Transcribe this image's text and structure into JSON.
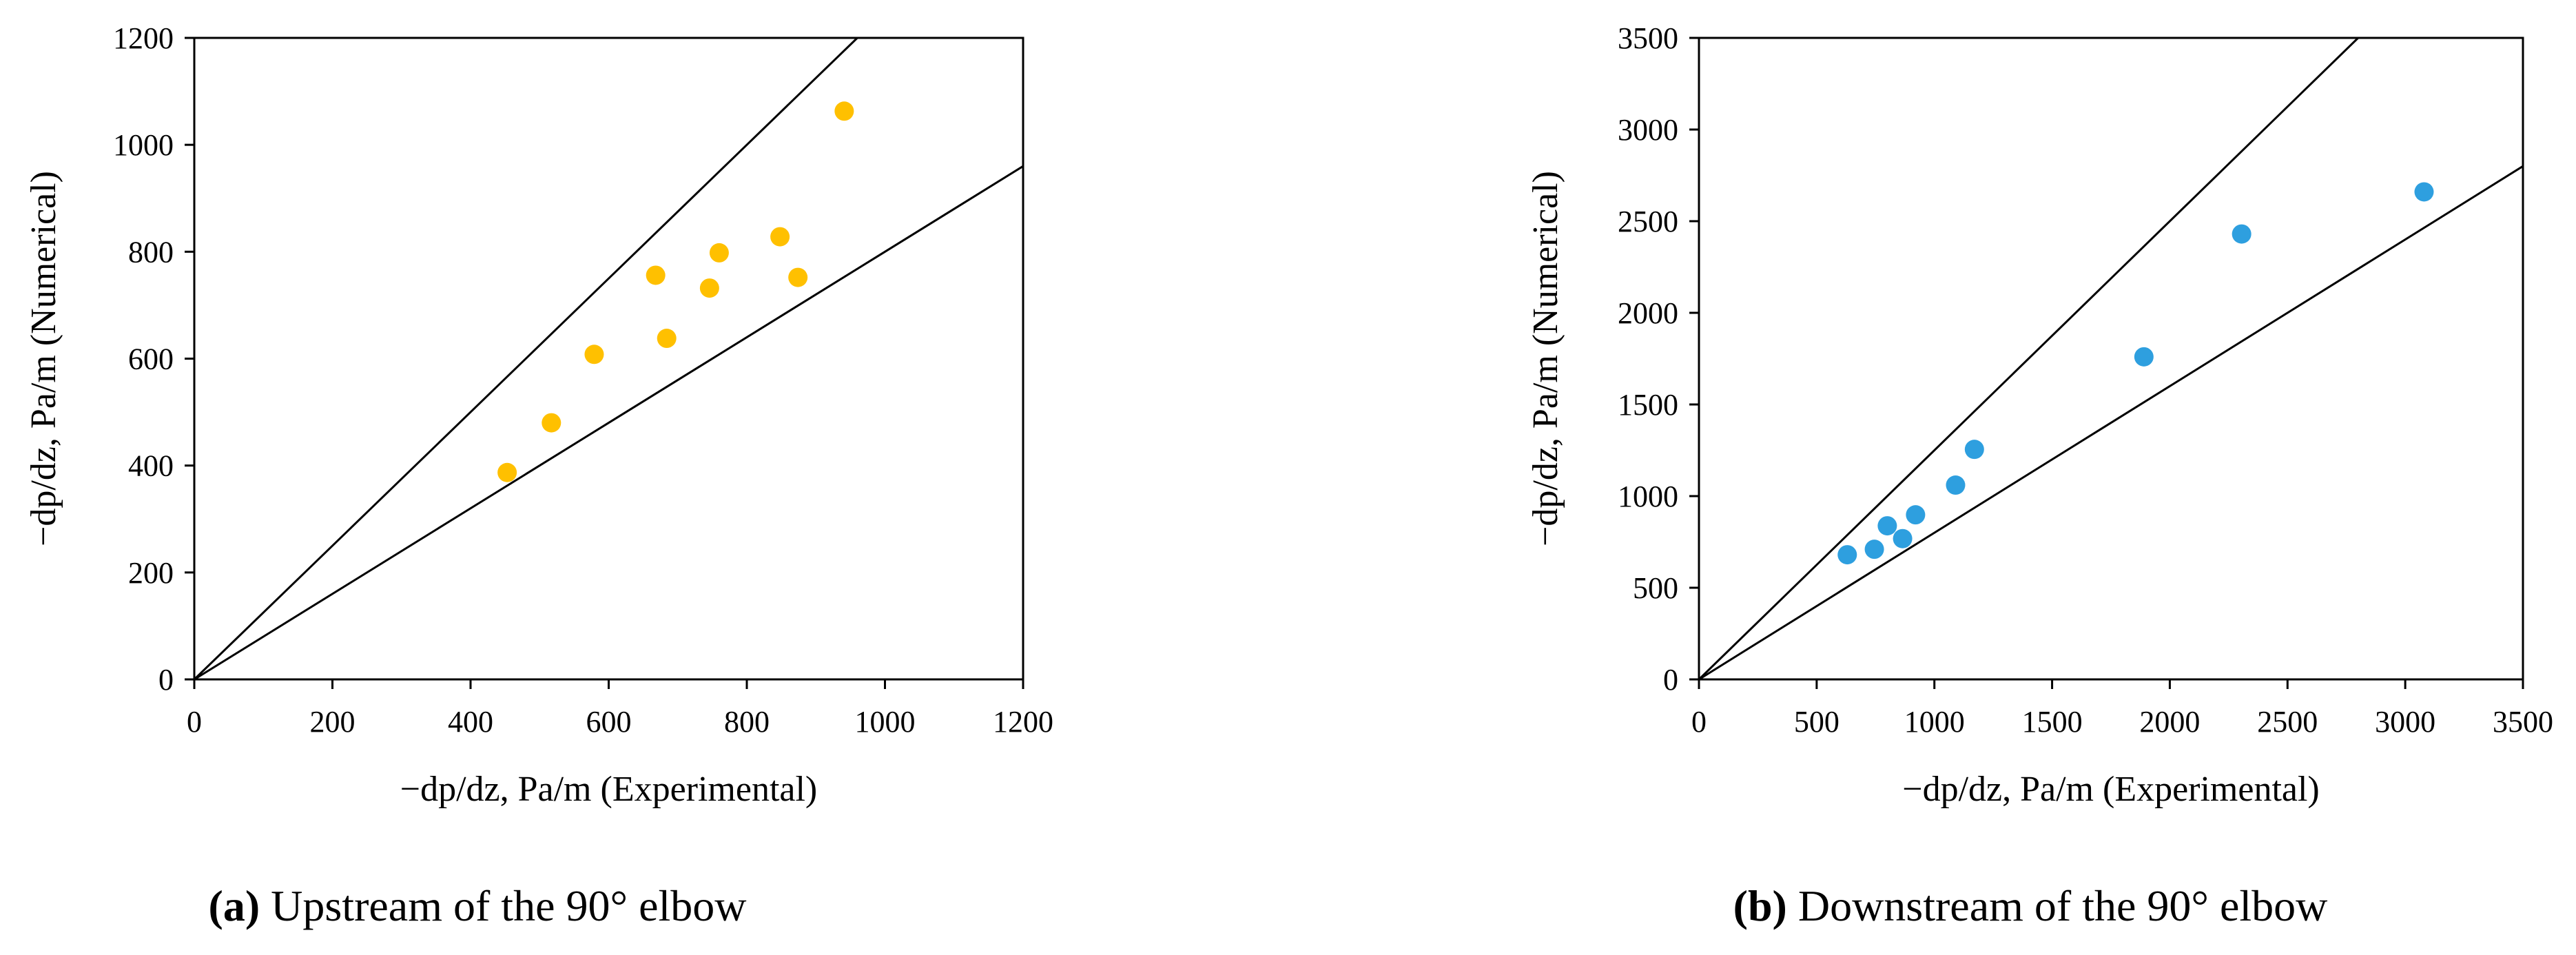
{
  "chart_data": [
    {
      "type": "scatter",
      "xlabel": "−dp/dz, Pa/m (Experimental)",
      "ylabel": "−dp/dz, Pa/m (Numerical)",
      "xlim": [
        0,
        1200
      ],
      "ylim": [
        0,
        1200
      ],
      "xticks": [
        0,
        200,
        400,
        600,
        800,
        1000,
        1200
      ],
      "yticks": [
        0,
        200,
        400,
        600,
        800,
        1000,
        1200
      ],
      "grid": false,
      "reference_lines": [
        {
          "slope": 1.25
        },
        {
          "slope": 0.8
        }
      ],
      "series": [
        {
          "color": "#FFC000",
          "points": [
            {
              "x": 453,
              "y": 387
            },
            {
              "x": 517,
              "y": 480
            },
            {
              "x": 579,
              "y": 608
            },
            {
              "x": 668,
              "y": 756
            },
            {
              "x": 684,
              "y": 638
            },
            {
              "x": 746,
              "y": 732
            },
            {
              "x": 760,
              "y": 798
            },
            {
              "x": 848,
              "y": 828
            },
            {
              "x": 874,
              "y": 752
            },
            {
              "x": 941,
              "y": 1063
            }
          ]
        }
      ],
      "caption_label": "(a)",
      "caption_text": " Upstream of the 90° elbow"
    },
    {
      "type": "scatter",
      "xlabel": "−dp/dz, Pa/m (Experimental)",
      "ylabel": "−dp/dz, Pa/m (Numerical)",
      "xlim": [
        0,
        3500
      ],
      "ylim": [
        0,
        3500
      ],
      "xticks": [
        0,
        500,
        1000,
        1500,
        2000,
        2500,
        3000,
        3500
      ],
      "yticks": [
        0,
        500,
        1000,
        1500,
        2000,
        2500,
        3000,
        3500
      ],
      "grid": false,
      "reference_lines": [
        {
          "slope": 1.25
        },
        {
          "slope": 0.8
        }
      ],
      "series": [
        {
          "color": "#2E9FDF",
          "points": [
            {
              "x": 630,
              "y": 680
            },
            {
              "x": 745,
              "y": 710
            },
            {
              "x": 800,
              "y": 838
            },
            {
              "x": 865,
              "y": 768
            },
            {
              "x": 920,
              "y": 898
            },
            {
              "x": 1090,
              "y": 1060
            },
            {
              "x": 1170,
              "y": 1255
            },
            {
              "x": 1890,
              "y": 1760
            },
            {
              "x": 2305,
              "y": 2430
            },
            {
              "x": 3080,
              "y": 2660
            }
          ]
        }
      ],
      "caption_label": "(b)",
      "caption_text": " Downstream of the 90° elbow"
    }
  ]
}
